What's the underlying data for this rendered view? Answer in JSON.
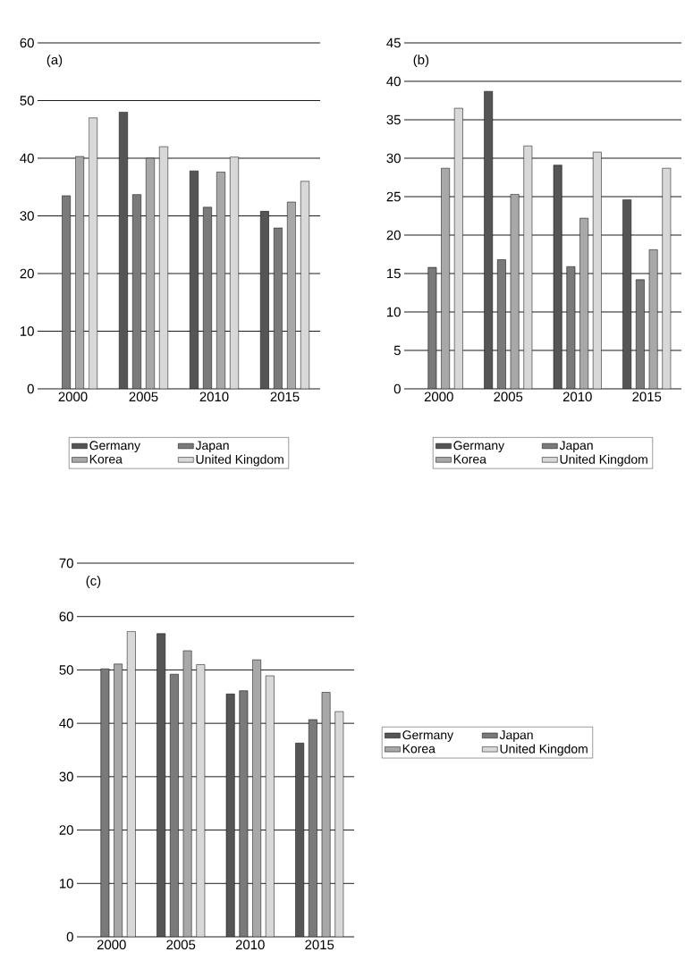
{
  "chart_data": [
    {
      "type": "bar",
      "annotations": [
        "(a)"
      ],
      "categories": [
        "2000",
        "2005",
        "2010",
        "2015"
      ],
      "ylim": [
        0,
        60
      ],
      "yticks": [
        0,
        10,
        20,
        30,
        40,
        50,
        60
      ],
      "grid": "y",
      "legend": "bottom",
      "series": [
        {
          "name": "Germany",
          "color": "#555555",
          "values": [
            null,
            48,
            37.8,
            30.8
          ]
        },
        {
          "name": "Japan",
          "color": "#7a7a7a",
          "values": [
            33.5,
            33.7,
            31.5,
            27.9
          ]
        },
        {
          "name": "Korea",
          "color": "#a8a8a8",
          "values": [
            40.3,
            40,
            37.6,
            32.4
          ]
        },
        {
          "name": "United Kingdom",
          "color": "#d8d8d8",
          "values": [
            47,
            42,
            40.2,
            36
          ]
        }
      ]
    },
    {
      "type": "bar",
      "annotations": [
        "(b)"
      ],
      "categories": [
        "2000",
        "2005",
        "2010",
        "2015"
      ],
      "ylim": [
        0,
        45
      ],
      "yticks": [
        0,
        5,
        10,
        15,
        20,
        25,
        30,
        35,
        40,
        45
      ],
      "grid": "y",
      "legend": "bottom",
      "series": [
        {
          "name": "Germany",
          "color": "#555555",
          "values": [
            null,
            38.7,
            29.1,
            24.6
          ]
        },
        {
          "name": "Japan",
          "color": "#7a7a7a",
          "values": [
            15.8,
            16.8,
            15.9,
            14.2
          ]
        },
        {
          "name": "Korea",
          "color": "#a8a8a8",
          "values": [
            28.7,
            25.3,
            22.2,
            18.1
          ]
        },
        {
          "name": "United Kingdom",
          "color": "#d8d8d8",
          "values": [
            36.5,
            31.6,
            30.8,
            28.7
          ]
        }
      ]
    },
    {
      "type": "bar",
      "annotations": [
        "(c)"
      ],
      "categories": [
        "2000",
        "2005",
        "2010",
        "2015"
      ],
      "ylim": [
        0,
        70
      ],
      "yticks": [
        0,
        10,
        20,
        30,
        40,
        50,
        60,
        70
      ],
      "grid": "y",
      "legend": "right",
      "series": [
        {
          "name": "Germany",
          "color": "#555555",
          "values": [
            null,
            56.8,
            45.5,
            36.3
          ]
        },
        {
          "name": "Japan",
          "color": "#7a7a7a",
          "values": [
            50.2,
            49.2,
            46.1,
            40.7
          ]
        },
        {
          "name": "Korea",
          "color": "#a8a8a8",
          "values": [
            51.1,
            53.6,
            51.9,
            45.8
          ]
        },
        {
          "name": "United Kingdom",
          "color": "#d8d8d8",
          "values": [
            57.2,
            51.0,
            48.9,
            42.2
          ]
        }
      ]
    }
  ]
}
